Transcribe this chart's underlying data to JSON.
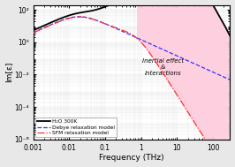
{
  "title": "",
  "xlabel": "Frequency (THz)",
  "ylabel": "Im[ε]",
  "xlim": [
    0.001,
    300
  ],
  "ylim": [
    1e-06,
    200
  ],
  "bg_color": "#ffffff",
  "fig_bg_color": "#e8e8e8",
  "annotation_text": "Inertial effect\n&\ninteractions",
  "legend_entries": [
    "H₂O 300K",
    "Debye relaxation model",
    "SFM relaxation model"
  ],
  "debye_color": "#3333ff",
  "sfm_color": "#ff3333",
  "h2o_color": "#000000",
  "fill_color": "#ffccdd",
  "xtick_labels": [
    "0.001",
    "0.01",
    "0.1",
    "1",
    "10",
    "100"
  ],
  "xtick_vals": [
    0.001,
    0.01,
    0.1,
    1,
    10,
    100
  ],
  "ytick_labels": [
    "10⁻⁶",
    "10⁻⁴",
    "10⁻²",
    "10⁰",
    "10²"
  ],
  "ytick_vals": [
    1e-06,
    0.0001,
    0.01,
    1,
    100
  ]
}
